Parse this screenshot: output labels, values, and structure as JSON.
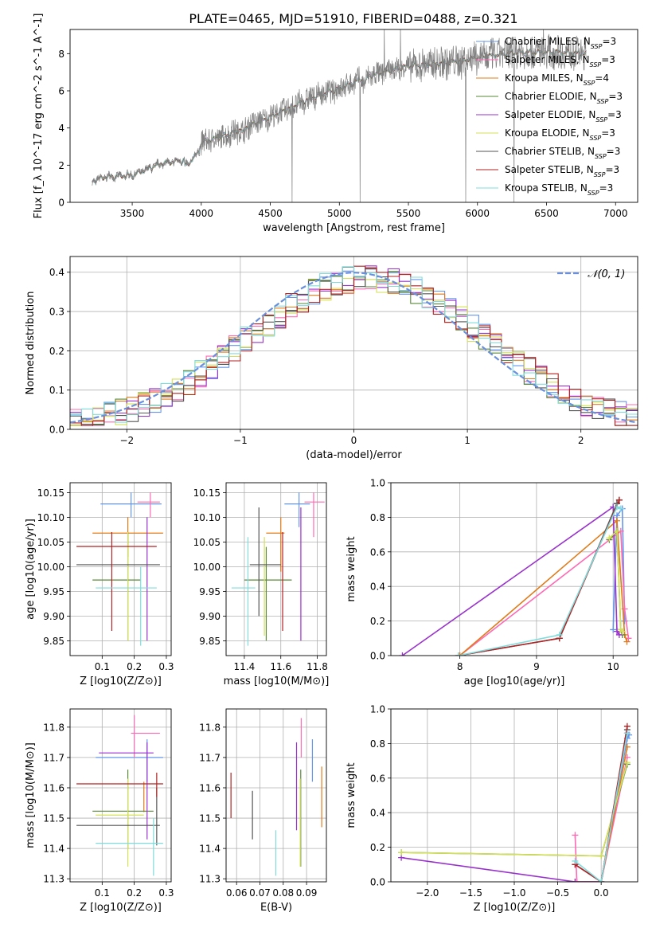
{
  "figure_title": "PLATE=0465, MJD=51910, FIBERID=0488, z=0.321",
  "colors": {
    "Chabrier MILES": "#6495ed",
    "Salpeter MILES": "#ff69b4",
    "Kroupa MILES": "#e07b1a",
    "Chabrier ELODIE": "#5a8a3a",
    "Salpeter ELODIE": "#9932cc",
    "Kroupa ELODIE": "#d4e05a",
    "Chabrier STELIB": "#555555",
    "Salpeter STELIB": "#b22222",
    "Kroupa STELIB": "#80dcdc",
    "normal": "#6a8fdc",
    "data": "#808080",
    "grid": "#b0b0b0"
  },
  "chart_data": [
    {
      "id": "spectrum",
      "type": "line",
      "xlabel": "wavelength [Angstrom, rest frame]",
      "ylabel": "Flux [f_λ 10^-17 erg cm^-2 s^-1 A^-1]",
      "xlim": [
        3050,
        7160
      ],
      "ylim": [
        0,
        9.3
      ],
      "xticks": [
        3500,
        4000,
        4500,
        5000,
        5500,
        6000,
        6500,
        7000
      ],
      "yticks": [
        0,
        2,
        4,
        6,
        8
      ],
      "grid": false,
      "legend_position": "right",
      "continuum": [
        [
          3210,
          1.2
        ],
        [
          3300,
          1.45
        ],
        [
          3500,
          1.55
        ],
        [
          3700,
          2.2
        ],
        [
          3900,
          2.45
        ],
        [
          4000,
          3.4
        ],
        [
          4200,
          3.9
        ],
        [
          4500,
          4.9
        ],
        [
          4800,
          6.0
        ],
        [
          5000,
          6.5
        ],
        [
          5200,
          7.2
        ],
        [
          5500,
          7.8
        ],
        [
          5800,
          8.0
        ],
        [
          6000,
          8.3
        ],
        [
          6300,
          8.6
        ],
        [
          6600,
          8.6
        ],
        [
          6800,
          8.5
        ]
      ],
      "models": [
        {
          "name": "Chabrier MILES",
          "nssp": "3"
        },
        {
          "name": "Salpeter MILES",
          "nssp": "3"
        },
        {
          "name": "Kroupa MILES",
          "nssp": "4"
        },
        {
          "name": "Chabrier ELODIE",
          "nssp": "3"
        },
        {
          "name": "Salpeter ELODIE",
          "nssp": "3"
        },
        {
          "name": "Kroupa ELODIE",
          "nssp": "3"
        },
        {
          "name": "Chabrier STELIB",
          "nssp": "3"
        },
        {
          "name": "Salpeter STELIB",
          "nssp": "3"
        },
        {
          "name": "Kroupa STELIB",
          "nssp": "3"
        }
      ]
    },
    {
      "id": "residuals",
      "type": "histogram",
      "xlabel": "(data-model)/error",
      "ylabel": "Normed distribution",
      "xlim": [
        -2.5,
        2.5
      ],
      "ylim": [
        0,
        0.44
      ],
      "xticks": [
        -2,
        -1,
        0,
        1,
        2
      ],
      "yticks": [
        0.0,
        0.1,
        0.2,
        0.3,
        0.4
      ],
      "grid": true,
      "legend": "𝒩(0, 1)",
      "legend_position": "top-right",
      "bin_width": 0.1
    },
    {
      "id": "age_vs_Z",
      "type": "errorbar",
      "xlabel": "Z [log10(Z/Z⊙)]",
      "ylabel": "age [log10(age/yr)]",
      "xlim": [
        0,
        0.315
      ],
      "ylim": [
        9.82,
        10.17
      ],
      "xticks": [
        0.1,
        0.2,
        0.3
      ],
      "yticks": [
        9.85,
        9.9,
        9.95,
        10.0,
        10.05,
        10.1,
        10.15
      ],
      "grid": true,
      "points": [
        {
          "model": "Chabrier MILES",
          "x": 0.19,
          "xerr": [
            0.095,
            0.285
          ],
          "y": 10.127,
          "yerr": [
            10.1,
            10.15
          ]
        },
        {
          "model": "Salpeter MILES",
          "x": 0.25,
          "xerr": [
            0.21,
            0.28
          ],
          "y": 10.131,
          "yerr": [
            10.1,
            10.15
          ]
        },
        {
          "model": "Kroupa MILES",
          "x": 0.18,
          "xerr": [
            0.07,
            0.29
          ],
          "y": 10.068,
          "yerr": [
            10.02,
            10.1
          ]
        },
        {
          "model": "Chabrier ELODIE",
          "x": 0.18,
          "xerr": [
            0.07,
            0.22
          ],
          "y": 9.973,
          "yerr": [
            9.85,
            10.07
          ]
        },
        {
          "model": "Salpeter ELODIE",
          "x": 0.24,
          "xerr": [
            0.24,
            0.24
          ],
          "y": 10.0,
          "yerr": [
            9.85,
            10.1
          ]
        },
        {
          "model": "Kroupa ELODIE",
          "x": 0.18,
          "xerr": [
            0.18,
            0.18
          ],
          "y": 10.0,
          "yerr": [
            9.85,
            10.07
          ]
        },
        {
          "model": "Chabrier STELIB",
          "x": 0.1,
          "xerr": [
            0.02,
            0.28
          ],
          "y": 10.004,
          "yerr": [
            10.004,
            10.004
          ]
        },
        {
          "model": "Salpeter STELIB",
          "x": 0.13,
          "xerr": [
            0.02,
            0.27
          ],
          "y": 10.041,
          "yerr": [
            9.87,
            10.07
          ]
        },
        {
          "model": "Kroupa STELIB",
          "x": 0.22,
          "xerr": [
            0.08,
            0.27
          ],
          "y": 9.957,
          "yerr": [
            9.84,
            10.0
          ]
        }
      ]
    },
    {
      "id": "age_vs_mass",
      "type": "errorbar",
      "xlabel": "mass [log10(M/M⊙)]",
      "ylabel": "",
      "xlim": [
        11.3,
        11.85
      ],
      "ylim": [
        9.82,
        10.17
      ],
      "xticks": [
        11.4,
        11.6,
        11.8
      ],
      "yticks": [
        9.85,
        9.9,
        9.95,
        10.0,
        10.05,
        10.1,
        10.15
      ],
      "grid": true,
      "points": [
        {
          "model": "Chabrier MILES",
          "x": 11.7,
          "xerr": [
            11.62,
            11.76
          ],
          "y": 10.127,
          "yerr": [
            10.08,
            10.15
          ]
        },
        {
          "model": "Salpeter MILES",
          "x": 11.78,
          "xerr": [
            11.73,
            11.84
          ],
          "y": 10.131,
          "yerr": [
            10.06,
            10.15
          ]
        },
        {
          "model": "Kroupa MILES",
          "x": 11.6,
          "xerr": [
            11.52,
            11.62
          ],
          "y": 10.068,
          "yerr": [
            9.99,
            10.1
          ]
        },
        {
          "model": "Chabrier ELODIE",
          "x": 11.52,
          "xerr": [
            11.4,
            11.66
          ],
          "y": 9.973,
          "yerr": [
            9.85,
            10.04
          ]
        },
        {
          "model": "Salpeter ELODIE",
          "x": 11.71,
          "xerr": [
            11.71,
            11.71
          ],
          "y": 10.0,
          "yerr": [
            9.85,
            10.12
          ]
        },
        {
          "model": "Kroupa ELODIE",
          "x": 11.51,
          "xerr": [
            11.51,
            11.51
          ],
          "y": 10.0,
          "yerr": [
            9.86,
            10.06
          ]
        },
        {
          "model": "Chabrier STELIB",
          "x": 11.48,
          "xerr": [
            11.43,
            11.6
          ],
          "y": 10.004,
          "yerr": [
            9.9,
            10.12
          ]
        },
        {
          "model": "Salpeter STELIB",
          "x": 11.61,
          "xerr": [
            11.61,
            11.61
          ],
          "y": 10.041,
          "yerr": [
            9.87,
            10.07
          ]
        },
        {
          "model": "Kroupa STELIB",
          "x": 11.42,
          "xerr": [
            11.33,
            11.46
          ],
          "y": 9.957,
          "yerr": [
            9.84,
            10.06
          ]
        }
      ]
    },
    {
      "id": "weight_vs_age",
      "type": "line",
      "xlabel": "age [log10(age/yr)]",
      "ylabel": "mass weight",
      "xlim": [
        7.1,
        10.32
      ],
      "ylim": [
        0,
        1
      ],
      "xticks": [
        8,
        9,
        10
      ],
      "yticks": [
        0.0,
        0.2,
        0.4,
        0.6,
        0.8,
        1.0
      ],
      "grid": true,
      "series": [
        {
          "model": "Chabrier MILES",
          "x": [
            10.0,
            10.05,
            10.12,
            10.15
          ],
          "y": [
            0.15,
            0.81,
            0.85,
            0.2
          ]
        },
        {
          "model": "Salpeter MILES",
          "x": [
            8.0,
            10.1,
            10.15,
            10.2
          ],
          "y": [
            0.0,
            0.72,
            0.27,
            0.1
          ]
        },
        {
          "model": "Kroupa MILES",
          "x": [
            8.0,
            10.05,
            10.15,
            10.18
          ],
          "y": [
            0.0,
            0.78,
            0.12,
            0.08
          ]
        },
        {
          "model": "Chabrier ELODIE",
          "x": [
            9.95,
            10.05,
            10.1,
            10.12
          ],
          "y": [
            0.67,
            0.72,
            0.15,
            0.12
          ]
        },
        {
          "model": "Salpeter ELODIE",
          "x": [
            7.25,
            10.0,
            10.05,
            10.08
          ],
          "y": [
            0.0,
            0.86,
            0.14,
            0.12
          ]
        },
        {
          "model": "Kroupa ELODIE",
          "x": [
            9.95,
            10.05,
            10.1,
            10.12
          ],
          "y": [
            0.68,
            0.72,
            0.15,
            0.14
          ]
        },
        {
          "model": "Chabrier STELIB",
          "x": [
            7.98,
            9.3,
            10.05,
            10.05
          ],
          "y": [
            0.0,
            0.1,
            0.88,
            0.88
          ]
        },
        {
          "model": "Salpeter STELIB",
          "x": [
            7.98,
            9.3,
            10.08,
            10.08
          ],
          "y": [
            0.0,
            0.1,
            0.9,
            0.9
          ]
        },
        {
          "model": "Kroupa STELIB",
          "x": [
            7.98,
            9.3,
            10.05,
            10.1
          ],
          "y": [
            0.0,
            0.12,
            0.86,
            0.85
          ]
        }
      ]
    },
    {
      "id": "mass_vs_Z",
      "type": "errorbar",
      "xlabel": "Z [log10(Z/Z⊙)]",
      "ylabel": "mass [log10(M/M⊙)]",
      "xlim": [
        0,
        0.315
      ],
      "ylim": [
        11.29,
        11.86
      ],
      "xticks": [
        0.1,
        0.2,
        0.3
      ],
      "yticks": [
        11.3,
        11.4,
        11.5,
        11.6,
        11.7,
        11.8
      ],
      "grid": true,
      "points": [
        {
          "model": "Chabrier MILES",
          "x": 0.24,
          "xerr": [
            0.08,
            0.29
          ],
          "y": 11.7,
          "yerr": [
            11.62,
            11.76
          ]
        },
        {
          "model": "Salpeter MILES",
          "x": 0.2,
          "xerr": [
            0.19,
            0.28
          ],
          "y": 11.78,
          "yerr": [
            11.7,
            11.84
          ]
        },
        {
          "model": "Kroupa MILES",
          "x": 0.23,
          "xerr": [
            0.23,
            0.23
          ],
          "y": 11.6,
          "yerr": [
            11.52,
            11.62
          ]
        },
        {
          "model": "Chabrier ELODIE",
          "x": 0.18,
          "xerr": [
            0.07,
            0.26
          ],
          "y": 11.523,
          "yerr": [
            11.4,
            11.66
          ]
        },
        {
          "model": "Salpeter ELODIE",
          "x": 0.24,
          "xerr": [
            0.09,
            0.26
          ],
          "y": 11.715,
          "yerr": [
            11.43,
            11.75
          ]
        },
        {
          "model": "Kroupa ELODIE",
          "x": 0.18,
          "xerr": [
            0.08,
            0.23
          ],
          "y": 11.51,
          "yerr": [
            11.34,
            11.63
          ]
        },
        {
          "model": "Chabrier STELIB",
          "x": 0.27,
          "xerr": [
            0.02,
            0.28
          ],
          "y": 11.476,
          "yerr": [
            11.41,
            11.6
          ]
        },
        {
          "model": "Salpeter STELIB",
          "x": 0.27,
          "xerr": [
            0.02,
            0.29
          ],
          "y": 11.613,
          "yerr": [
            11.57,
            11.65
          ]
        },
        {
          "model": "Kroupa STELIB",
          "x": 0.26,
          "xerr": [
            0.08,
            0.29
          ],
          "y": 11.417,
          "yerr": [
            11.31,
            11.5
          ]
        }
      ]
    },
    {
      "id": "mass_vs_ebv",
      "type": "errorbar",
      "xlabel": "E(B-V)",
      "ylabel": "",
      "xlim": [
        0.0555,
        0.0985
      ],
      "ylim": [
        11.29,
        11.86
      ],
      "xticks": [
        0.06,
        0.07,
        0.08,
        0.09
      ],
      "yticks": [
        11.3,
        11.4,
        11.5,
        11.6,
        11.7,
        11.8
      ],
      "grid": true,
      "points": [
        {
          "model": "Chabrier MILES",
          "x": 0.0925,
          "yerr": [
            11.62,
            11.76
          ]
        },
        {
          "model": "Salpeter MILES",
          "x": 0.0877,
          "yerr": [
            11.7,
            11.83
          ]
        },
        {
          "model": "Kroupa MILES",
          "x": 0.0965,
          "yerr": [
            11.47,
            11.67
          ]
        },
        {
          "model": "Chabrier ELODIE",
          "x": 0.0875,
          "yerr": [
            11.34,
            11.66
          ]
        },
        {
          "model": "Salpeter ELODIE",
          "x": 0.0857,
          "yerr": [
            11.46,
            11.75
          ]
        },
        {
          "model": "Kroupa ELODIE",
          "x": 0.0873,
          "yerr": [
            11.34,
            11.63
          ]
        },
        {
          "model": "Chabrier STELIB",
          "x": 0.0668,
          "yerr": [
            11.43,
            11.59
          ]
        },
        {
          "model": "Salpeter STELIB",
          "x": 0.0576,
          "yerr": [
            11.5,
            11.65
          ]
        },
        {
          "model": "Kroupa STELIB",
          "x": 0.0768,
          "yerr": [
            11.31,
            11.46
          ]
        }
      ]
    },
    {
      "id": "weight_vs_Z",
      "type": "line",
      "xlabel": "Z [log10(Z/Z⊙)]",
      "ylabel": "mass weight",
      "xlim": [
        -2.42,
        0.42
      ],
      "ylim": [
        0,
        1
      ],
      "xticks": [
        -2.0,
        -1.5,
        -1.0,
        -0.5,
        0.0
      ],
      "yticks": [
        0.0,
        0.2,
        0.4,
        0.6,
        0.8,
        1.0
      ],
      "grid": true,
      "series": [
        {
          "model": "Chabrier MILES",
          "x": [
            0.0,
            0.3,
            0.32
          ],
          "y": [
            0.0,
            0.83,
            0.85
          ]
        },
        {
          "model": "Salpeter MILES",
          "x": [
            -0.3,
            -0.28,
            0.0,
            0.3
          ],
          "y": [
            0.27,
            0.0,
            0.0,
            0.72
          ]
        },
        {
          "model": "Kroupa MILES",
          "x": [
            -0.3,
            0.0,
            0.3
          ],
          "y": [
            0.0,
            0.0,
            0.78
          ]
        },
        {
          "model": "Chabrier ELODIE",
          "x": [
            -2.3,
            0.0,
            0.3
          ],
          "y": [
            0.17,
            0.15,
            0.68
          ]
        },
        {
          "model": "Salpeter ELODIE",
          "x": [
            -2.3,
            -0.3,
            0.0,
            0.3
          ],
          "y": [
            0.14,
            0.0,
            0.0,
            0.86
          ]
        },
        {
          "model": "Kroupa ELODIE",
          "x": [
            -2.3,
            0.0,
            0.3
          ],
          "y": [
            0.17,
            0.15,
            0.69
          ]
        },
        {
          "model": "Chabrier STELIB",
          "x": [
            -0.3,
            0.0,
            0.3
          ],
          "y": [
            0.1,
            0.0,
            0.88
          ]
        },
        {
          "model": "Salpeter STELIB",
          "x": [
            -0.3,
            0.0,
            0.3
          ],
          "y": [
            0.1,
            0.0,
            0.9
          ]
        },
        {
          "model": "Kroupa STELIB",
          "x": [
            -0.3,
            0.0,
            0.3
          ],
          "y": [
            0.12,
            0.0,
            0.86
          ]
        }
      ]
    }
  ]
}
